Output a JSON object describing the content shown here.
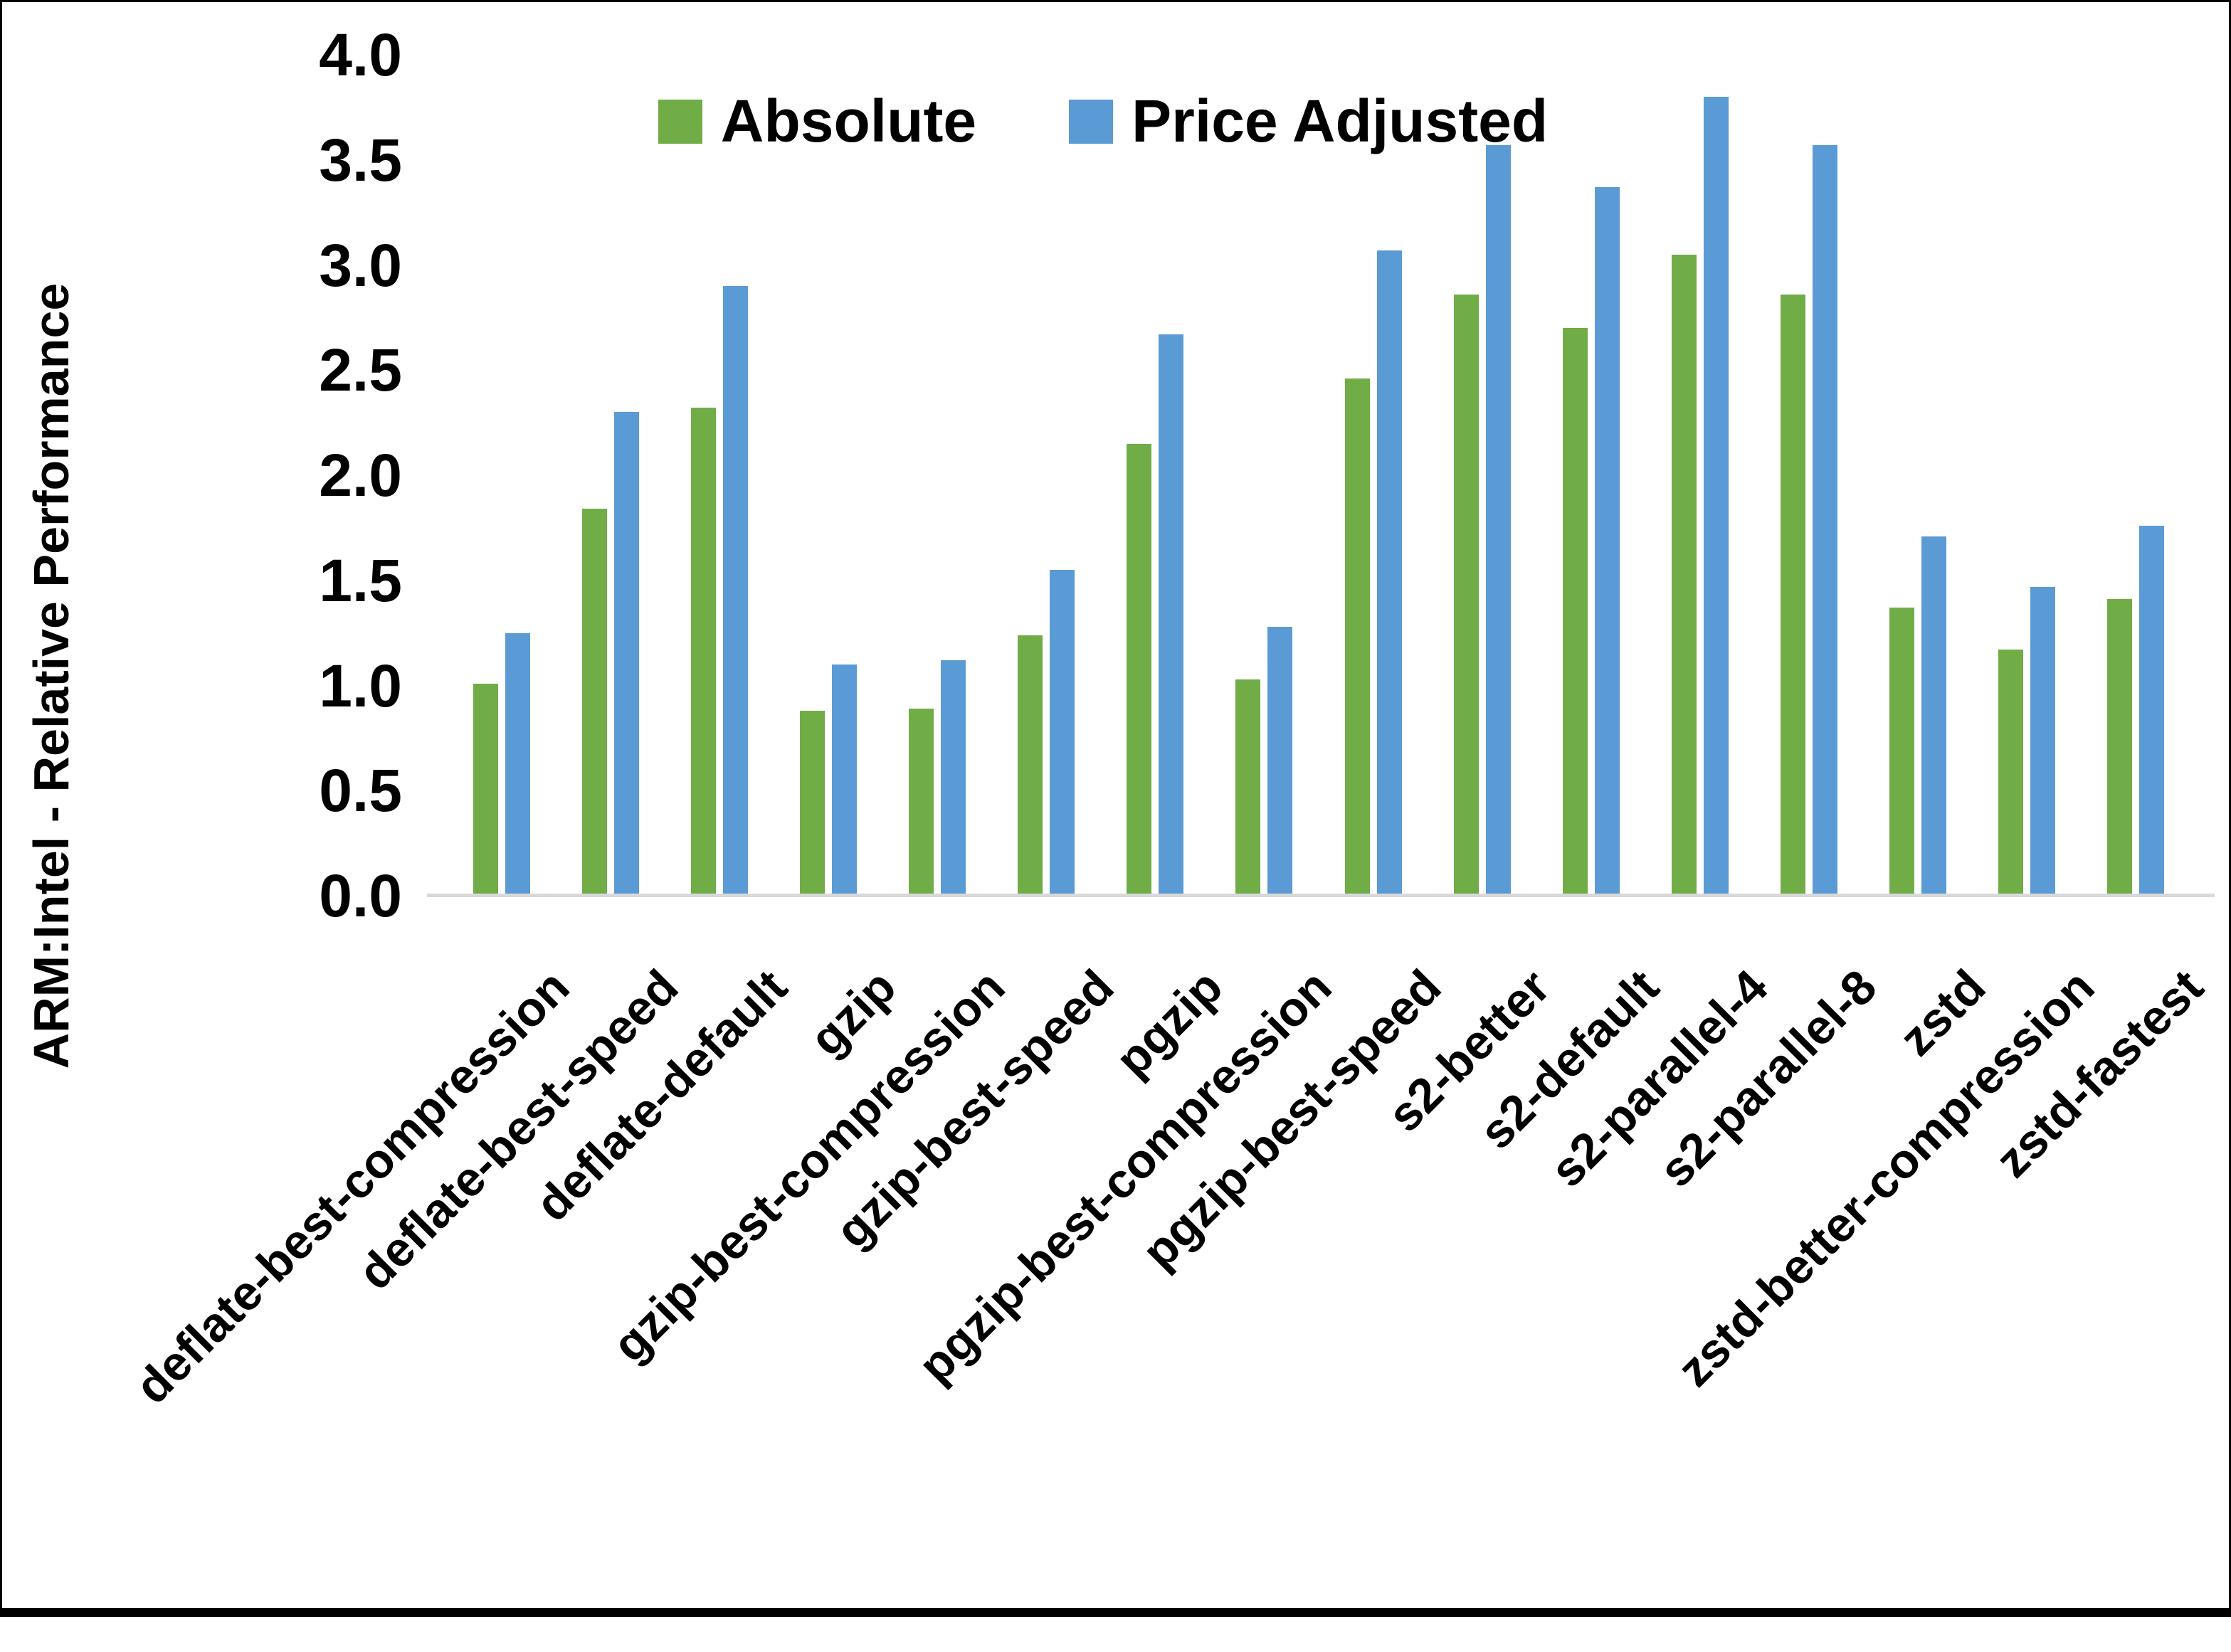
{
  "axis_title": "ARM:Intel - Relative Performance",
  "legend": [
    {
      "label": "Absolute",
      "color": "#70AD47"
    },
    {
      "label": "Price Adjusted",
      "color": "#5B9BD5"
    }
  ],
  "colors": {
    "absolute": "#70AD47",
    "price_adjusted": "#5B9BD5",
    "axis_line": "#d9d9d9",
    "text": "#000000",
    "background": "#ffffff",
    "border": "#000000"
  },
  "y_tick_labels": [
    "4.0",
    "3.5",
    "3.0",
    "2.5",
    "2.0",
    "1.5",
    "1.0",
    "0.5",
    "0.0"
  ],
  "chart_data": {
    "type": "bar",
    "title": "",
    "xlabel": "",
    "ylabel": "ARM:Intel - Relative Performance",
    "ylim": [
      0,
      4
    ],
    "ytick_step": 0.5,
    "grid": false,
    "legend_position": "top-center",
    "categories": [
      "deflate-best-compression",
      "deflate-best-speed",
      "deflate-default",
      "gzip",
      "gzip-best-compression",
      "gzip-best-speed",
      "pgzip",
      "pgzip-best-compression",
      "pgzip-best-speed",
      "s2-better",
      "s2-default",
      "s2-parallel-4",
      "s2-parallel-8",
      "zstd",
      "zstd-better-compression",
      "zstd-fastest"
    ],
    "series": [
      {
        "name": "Absolute",
        "color": "#70AD47",
        "values": [
          1.01,
          1.84,
          2.32,
          0.88,
          0.89,
          1.24,
          2.15,
          1.03,
          2.46,
          2.86,
          2.7,
          3.05,
          2.86,
          1.37,
          1.17,
          1.41
        ]
      },
      {
        "name": "Price Adjusted",
        "color": "#5B9BD5",
        "values": [
          1.25,
          2.3,
          2.9,
          1.1,
          1.12,
          1.55,
          2.67,
          1.28,
          3.07,
          3.57,
          3.37,
          3.8,
          3.57,
          1.71,
          1.47,
          1.76
        ]
      }
    ]
  }
}
